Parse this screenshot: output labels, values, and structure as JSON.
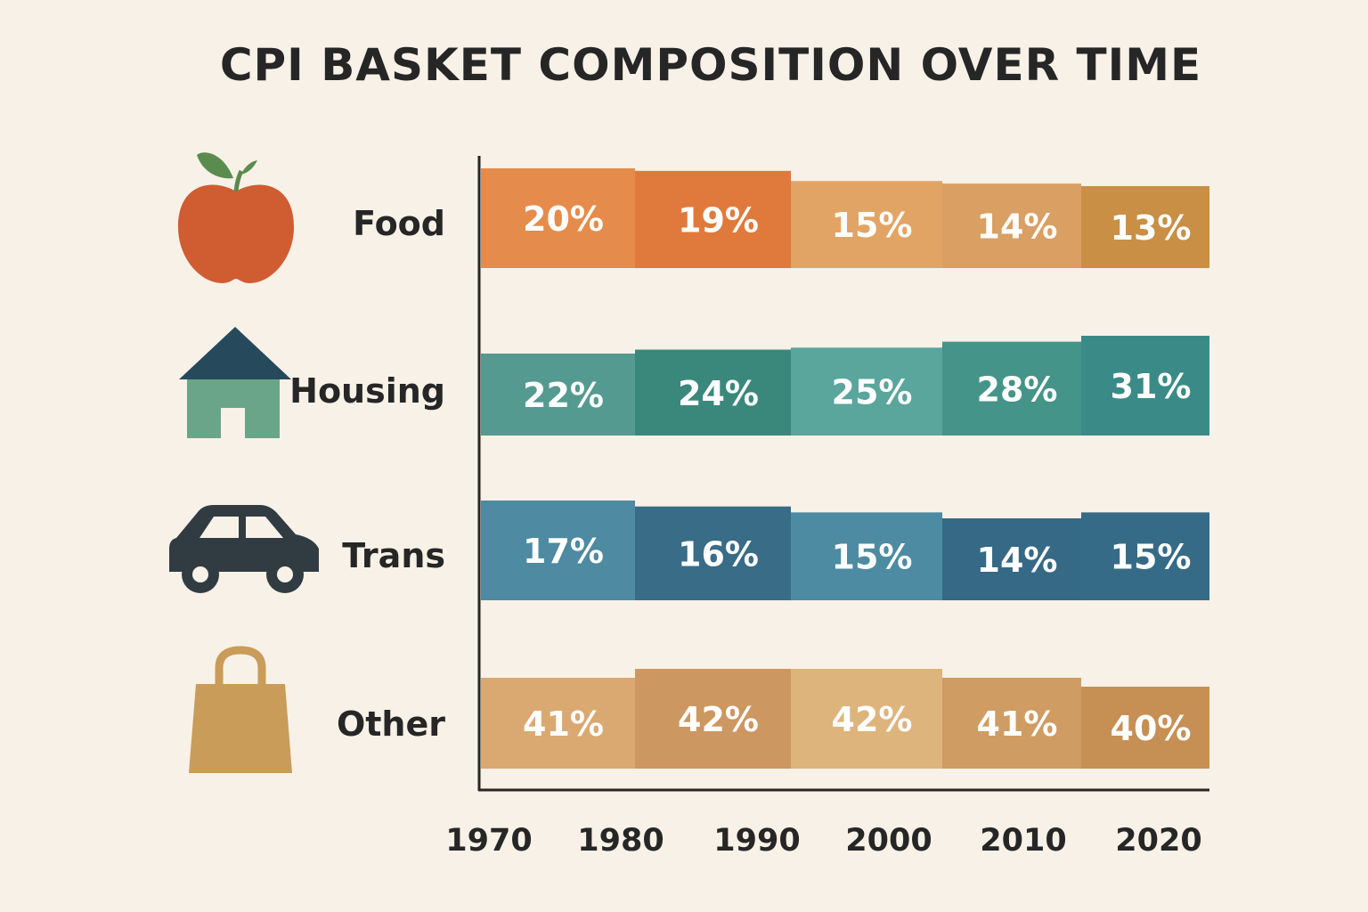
{
  "chart_data": {
    "type": "bar",
    "title": "CPI BASKET COMPOSITION OVER TIME",
    "xlabel": "",
    "ylabel": "",
    "x_ticks": [
      "1970",
      "1980",
      "1990",
      "2000",
      "2010",
      "2020"
    ],
    "segments": [
      "1970s",
      "1980s",
      "1990s",
      "2000s",
      "2010s"
    ],
    "series": [
      {
        "name": "Food",
        "icon": "apple-icon",
        "values": [
          20,
          19,
          15,
          14,
          13
        ],
        "labels": [
          "20%",
          "19%",
          "15%",
          "14%",
          "13%"
        ],
        "colors": [
          "#e58c4c",
          "#e07a3c",
          "#e2a465",
          "#d99f63",
          "#c88f45"
        ]
      },
      {
        "name": "Housing",
        "icon": "house-icon",
        "values": [
          22,
          24,
          25,
          28,
          31
        ],
        "labels": [
          "22%",
          "24%",
          "25%",
          "28%",
          "31%"
        ],
        "colors": [
          "#559a91",
          "#3a887c",
          "#5aa59c",
          "#449489",
          "#3a8b87"
        ]
      },
      {
        "name": "Trans",
        "icon": "car-icon",
        "values": [
          17,
          16,
          15,
          14,
          15
        ],
        "labels": [
          "17%",
          "16%",
          "15%",
          "14%",
          "15%"
        ],
        "colors": [
          "#4e8aa1",
          "#396c87",
          "#4d8ba2",
          "#356985",
          "#356b86"
        ]
      },
      {
        "name": "Other",
        "icon": "shopping-bag-icon",
        "values": [
          41,
          42,
          42,
          41,
          40
        ],
        "labels": [
          "41%",
          "42%",
          "42%",
          "41%",
          "40%"
        ],
        "colors": [
          "#daa971",
          "#cd9761",
          "#ddb47c",
          "#cf9c63",
          "#c68f54"
        ]
      }
    ]
  }
}
